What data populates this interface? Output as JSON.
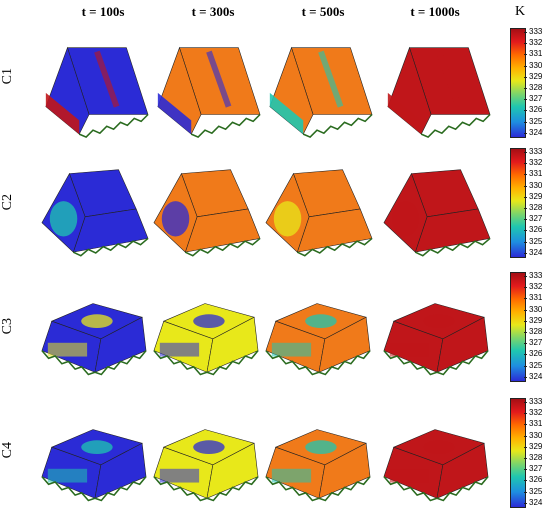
{
  "columns": [
    "t = 100s",
    "t = 300s",
    "t = 500s",
    "t = 1000s"
  ],
  "unit": "K",
  "rows": [
    "C1",
    "C2",
    "C3",
    "C4"
  ],
  "colorbar_ticks": [
    "333",
    "332",
    "331",
    "330",
    "329",
    "328",
    "327",
    "326",
    "325",
    "324"
  ],
  "colors": {
    "hot": "#c0161a",
    "warm": "#f07a1a",
    "mid": "#e8e81a",
    "cool": "#1fc7b0",
    "cold": "#2b2bd6"
  }
}
